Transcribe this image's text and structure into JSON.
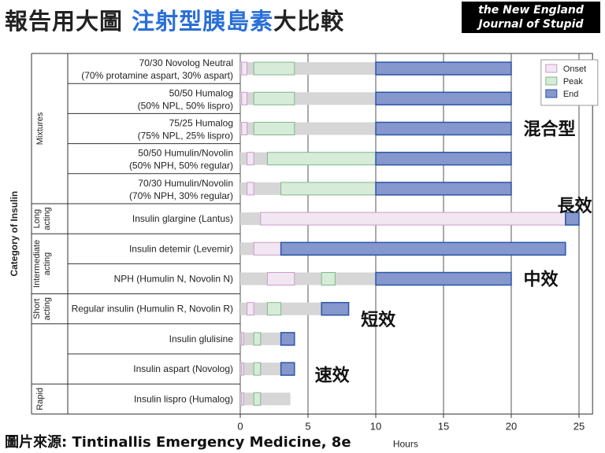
{
  "header": {
    "title_prefix": "報告用大圖 ",
    "title_highlight": "注射型胰島素",
    "title_suffix": "大比較",
    "journal_line1": "the New England",
    "journal_line2": "Journal of Stupid"
  },
  "footer": {
    "source": "圖片來源: Tintinallis Emergency Medicine, 8e"
  },
  "chart_data": {
    "type": "bar",
    "subtype": "horizontal-range",
    "xlabel": "Hours",
    "ylabel": "Category of Insulin",
    "xlim": [
      0,
      26
    ],
    "xticks": [
      0,
      5,
      10,
      15,
      20,
      25
    ],
    "grid": true,
    "legend_position": "top-right",
    "legend": [
      "Onset",
      "Peak",
      "End"
    ],
    "colors": {
      "onset": "#f3e6f3",
      "onset_edge": "#c89cc8",
      "peak": "#d6ecd9",
      "peak_edge": "#7fb887",
      "end": "#8597cc",
      "end_edge": "#2b56a8",
      "background": "#d6d6d6"
    },
    "groups": [
      {
        "label": "Mixtures",
        "rows": [
          0,
          4
        ]
      },
      {
        "label": "Long acting",
        "rows": [
          5,
          5
        ]
      },
      {
        "label": "Intermediate acting",
        "rows": [
          6,
          7
        ]
      },
      {
        "label": "Short acting",
        "rows": [
          8,
          8
        ]
      },
      {
        "label": "",
        "rows": [
          9,
          10
        ]
      },
      {
        "label": "Rapid",
        "rows": [
          11,
          11
        ]
      }
    ],
    "rows": [
      {
        "label": [
          "70/30 Novolog Neutral",
          "(70% protamine aspart, 30% aspart)"
        ],
        "total": [
          0,
          20
        ],
        "onset": [
          0.1,
          0.5
        ],
        "peak": [
          1,
          4
        ],
        "end": [
          10,
          20
        ]
      },
      {
        "label": [
          "50/50 Humalog",
          "(50% NPL, 50% lispro)"
        ],
        "total": [
          0,
          20
        ],
        "onset": [
          0.1,
          0.5
        ],
        "peak": [
          1,
          4
        ],
        "end": [
          10,
          20
        ]
      },
      {
        "label": [
          "75/25 Humalog",
          "(75% NPL, 25% lispro)"
        ],
        "total": [
          0,
          20
        ],
        "onset": [
          0.1,
          0.5
        ],
        "peak": [
          1,
          4
        ],
        "end": [
          10,
          20
        ]
      },
      {
        "label": [
          "50/50 Humulin/Novolin",
          "(50% NPH, 50% regular)"
        ],
        "total": [
          0,
          20
        ],
        "onset": [
          0.5,
          1
        ],
        "peak": [
          2,
          10
        ],
        "end": [
          10,
          20
        ]
      },
      {
        "label": [
          "70/30 Humulin/Novolin",
          "(70% NPH, 30% regular)"
        ],
        "total": [
          0,
          20
        ],
        "onset": [
          0.5,
          1
        ],
        "peak": [
          3,
          10
        ],
        "end": [
          10,
          20
        ]
      },
      {
        "label": [
          "Insulin glargine (Lantus)"
        ],
        "total": [
          0,
          25
        ],
        "onset": [
          1.5,
          24
        ],
        "peak": null,
        "end": [
          24,
          25
        ]
      },
      {
        "label": [
          "Insulin detemir (Levemir)"
        ],
        "total": [
          0,
          24
        ],
        "onset": [
          1,
          3
        ],
        "peak": null,
        "end": [
          3,
          24
        ]
      },
      {
        "label": [
          "NPH (Humulin N, Novolin N)"
        ],
        "total": [
          0,
          20
        ],
        "onset": [
          2,
          4
        ],
        "peak": [
          6,
          7
        ],
        "end": [
          10,
          20
        ]
      },
      {
        "label": [
          "Regular insulin (Humulin R, Novolin R)"
        ],
        "total": [
          0,
          8
        ],
        "onset": [
          0.5,
          1
        ],
        "peak": [
          2,
          3
        ],
        "end": [
          6,
          8
        ]
      },
      {
        "label": [
          "Insulin glulisine"
        ],
        "total": [
          0,
          4
        ],
        "onset": [
          0.1,
          0.25
        ],
        "peak": [
          1,
          1.5
        ],
        "end": [
          3,
          4
        ]
      },
      {
        "label": [
          "Insulin aspart (Novolog)"
        ],
        "total": [
          0,
          4
        ],
        "onset": [
          0.1,
          0.25
        ],
        "peak": [
          1,
          1.5
        ],
        "end": [
          3,
          4
        ]
      },
      {
        "label": [
          "Insulin lispro (Humalog)"
        ],
        "total": [
          0,
          3.7
        ],
        "onset": [
          0.1,
          0.25
        ],
        "peak": [
          1,
          1.5
        ],
        "end": null
      }
    ],
    "annotations": [
      {
        "text": "混合型",
        "row": 2,
        "x": 20.9
      },
      {
        "text": "長效",
        "row": 4.55,
        "x": 23.4
      },
      {
        "text": "中效",
        "row": 7,
        "x": 20.9
      },
      {
        "text": "短效",
        "row": 8.35,
        "x": 8.9
      },
      {
        "text": "速效",
        "row": 10.2,
        "x": 5.5
      }
    ]
  }
}
